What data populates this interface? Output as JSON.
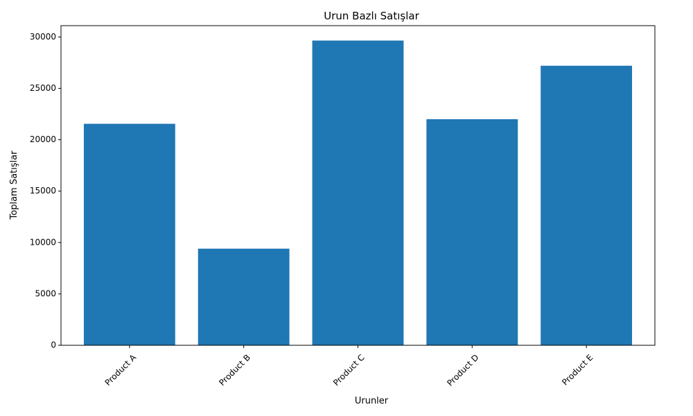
{
  "chart_data": {
    "type": "bar",
    "title": "Urun Bazlı Satışlar",
    "xlabel": "Urunler",
    "ylabel": "Toplam Satışlar",
    "categories": [
      "Product A",
      "Product B",
      "Product C",
      "Product D",
      "Product E"
    ],
    "values": [
      21550,
      9400,
      29650,
      22000,
      27200
    ],
    "ylim": [
      0,
      31100
    ],
    "yticks": [
      0,
      5000,
      10000,
      15000,
      20000,
      25000,
      30000
    ],
    "xtick_rotation_deg": 45,
    "grid": false,
    "legend": "none",
    "bar_color": "#1f77b4"
  }
}
